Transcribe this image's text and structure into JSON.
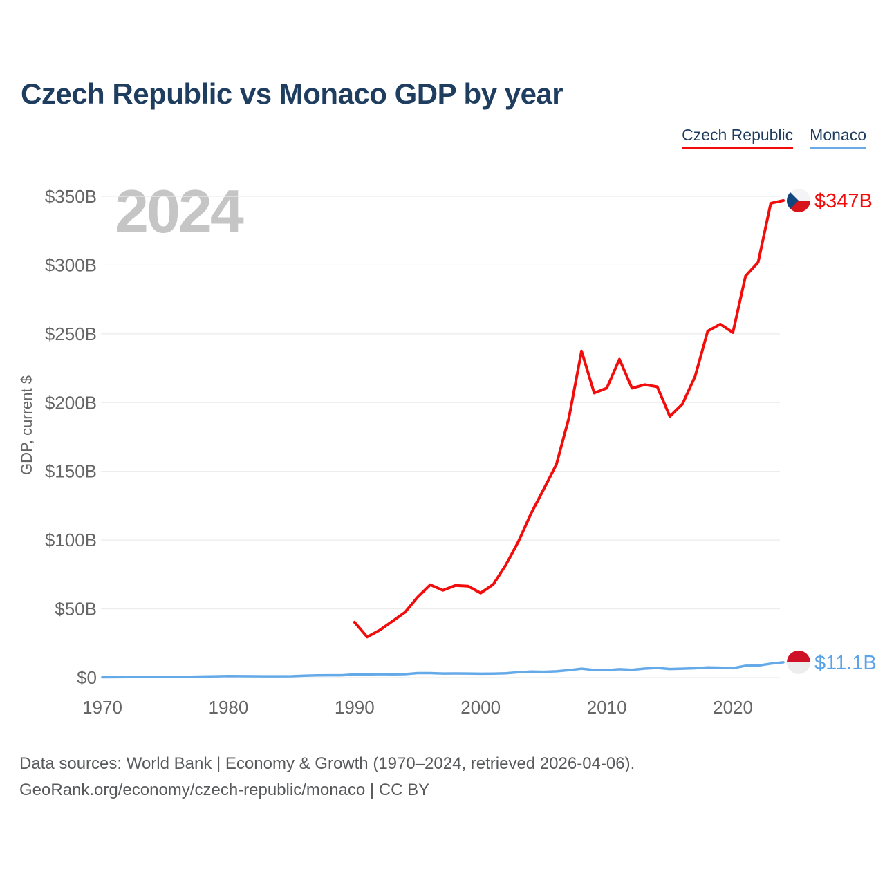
{
  "title": "Czech Republic vs Monaco GDP by year",
  "legend": {
    "items": [
      {
        "label": "Czech Republic",
        "color": "#f20d0d"
      },
      {
        "label": "Monaco",
        "color": "#6aaae6"
      }
    ]
  },
  "footer": {
    "line1": "Data sources: World Bank | Economy & Growth (1970–2024, retrieved 2026-04-06).",
    "line2": "GeoRank.org/economy/czech-republic/monaco | CC BY"
  },
  "theme": {
    "title_color": "#1e3d5f",
    "tick_color": "#666666",
    "grid_color": "#ececec",
    "watermark_color": "#c5c5c5",
    "footer_color": "#58595b"
  },
  "chart_data": {
    "type": "line",
    "title": "Czech Republic vs Monaco GDP by year",
    "xlabel": "",
    "ylabel": "GDP, current $",
    "watermark": "2024",
    "grid": true,
    "legend_position": "top-right",
    "xlim": [
      1970,
      2024
    ],
    "ylim": [
      0,
      350
    ],
    "x_ticks": [
      1970,
      1980,
      1990,
      2000,
      2010,
      2020
    ],
    "y_ticks": [
      {
        "value": 0,
        "label": "$0"
      },
      {
        "value": 50,
        "label": "$50B"
      },
      {
        "value": 100,
        "label": "$100B"
      },
      {
        "value": 150,
        "label": "$150B"
      },
      {
        "value": 200,
        "label": "$200B"
      },
      {
        "value": 250,
        "label": "$250B"
      },
      {
        "value": 300,
        "label": "$300B"
      },
      {
        "value": 350,
        "label": "$350B"
      }
    ],
    "y_unit": "billions of current US$",
    "series": [
      {
        "id": "czech-republic",
        "name": "Czech Republic",
        "color": "#f20d0d",
        "label_color": "#f20d0d",
        "stroke_width": 4,
        "start_year": 1990,
        "end_label": "$347B",
        "flag": "czech",
        "values": [
          40.3,
          29.5,
          34.5,
          41,
          47.5,
          58.5,
          67.5,
          63.5,
          67,
          66.5,
          61.5,
          67.8,
          82,
          99,
          119.5,
          137,
          155,
          189,
          237.5,
          207,
          210.5,
          231.5,
          210.5,
          213,
          211.5,
          190,
          199,
          219,
          252,
          257,
          251,
          292,
          302,
          345,
          347
        ]
      },
      {
        "id": "monaco",
        "name": "Monaco",
        "color": "#64a9e8",
        "label_color": "#5ba3e8",
        "stroke_width": 3.5,
        "start_year": 1970,
        "end_label": "$11.1B",
        "flag": "monaco",
        "values": [
          0.25,
          0.28,
          0.34,
          0.43,
          0.45,
          0.61,
          0.6,
          0.66,
          0.79,
          0.95,
          1.16,
          1.05,
          1.02,
          0.98,
          0.94,
          1.02,
          1.34,
          1.59,
          1.72,
          1.73,
          2.31,
          2.3,
          2.5,
          2.42,
          2.52,
          3.27,
          3.25,
          2.95,
          3.01,
          2.99,
          2.83,
          2.9,
          3.16,
          3.87,
          4.35,
          4.21,
          4.58,
          5.4,
          6.48,
          5.55,
          5.36,
          6.08,
          5.63,
          6.55,
          7.06,
          6.26,
          6.47,
          6.77,
          7.4,
          7.22,
          6.82,
          8.6,
          8.77,
          10.18,
          11.1
        ]
      }
    ],
    "flag_colors": {
      "czech_white": "#f4f4f6",
      "czech_red": "#d7141a",
      "czech_blue": "#11457e",
      "monaco_red": "#ce1126",
      "monaco_white": "#ededed"
    }
  }
}
